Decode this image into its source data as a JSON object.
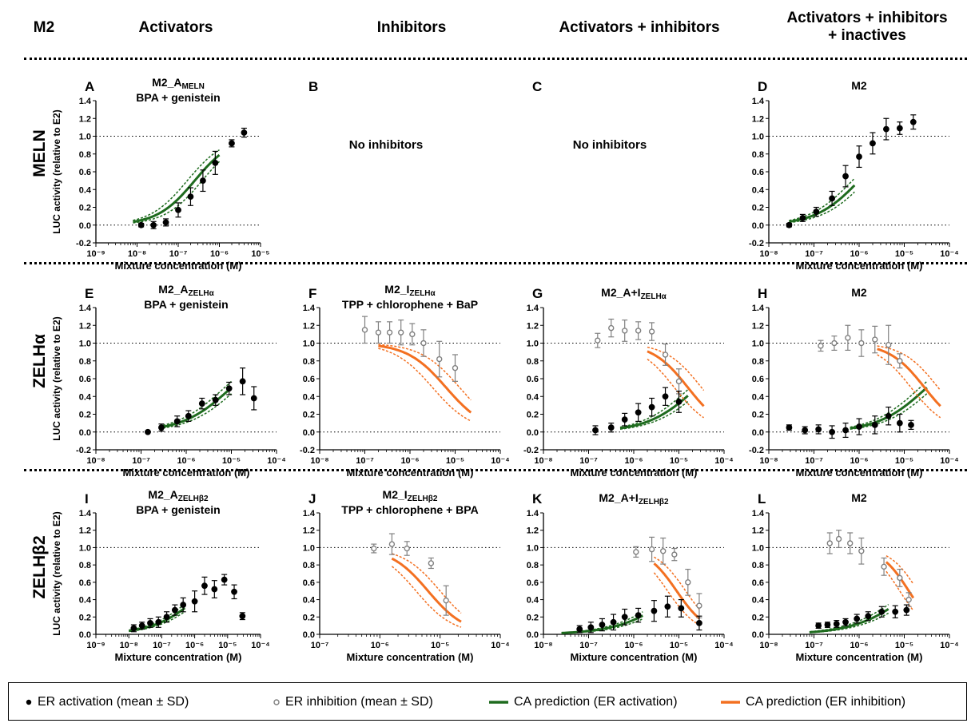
{
  "header": {
    "corner": "M2",
    "columns": [
      "Activators",
      "Inhibitors",
      "Activators + inhibitors",
      "Activators + inhibitors + inactives"
    ]
  },
  "rows": [
    {
      "label": "MELN",
      "greek": ""
    },
    {
      "label": "ZELH",
      "greek": "α"
    },
    {
      "label": "ZELH",
      "greek": "β2"
    }
  ],
  "legend": [
    {
      "symbol": "filled-circle",
      "label": "ER activation (mean ± SD)"
    },
    {
      "symbol": "open-circle",
      "label": "ER inhibition (mean ± SD)"
    },
    {
      "symbol": "green-line",
      "label": "CA prediction (ER activation)"
    },
    {
      "symbol": "orange-line",
      "label": "CA prediction (ER inhibition)"
    }
  ],
  "colors": {
    "activation_line": "#1e6b1e",
    "inhibition_line": "#f37021",
    "open_marker": "#808080",
    "filled_marker": "#000000"
  },
  "chart_data": [
    {
      "letter": "A",
      "type": "scatter",
      "title": [
        "M2_A",
        "MELN"
      ],
      "subtitle": "BPA + genistein",
      "xlabel": "Mixture concentration (M)",
      "ylabel": "LUC activity (relative to E2)",
      "xlog": true,
      "xlim": [
        -9,
        -5
      ],
      "ylim": [
        -0.2,
        1.4
      ],
      "series": [
        {
          "kind": "activation",
          "points": [
            [
              -7.9,
              0.0,
              0.02
            ],
            [
              -7.6,
              0.0,
              0.04
            ],
            [
              -7.3,
              0.03,
              0.04
            ],
            [
              -7.0,
              0.17,
              0.08
            ],
            [
              -6.7,
              0.32,
              0.1
            ],
            [
              -6.4,
              0.5,
              0.12
            ],
            [
              -6.1,
              0.7,
              0.13
            ],
            [
              -5.7,
              0.92,
              0.04
            ],
            [
              -5.4,
              1.04,
              0.05
            ]
          ]
        }
      ],
      "curves": [
        {
          "kind": "activation",
          "ec50": -6.6,
          "hill": 0.95,
          "top": 1.0,
          "dx": 0.18,
          "x0": -8.1,
          "x1": -6.0
        }
      ]
    },
    {
      "letter": "B",
      "type": "scatter",
      "title": [],
      "subtitle": "",
      "note": "No inhibitors",
      "noplot": true
    },
    {
      "letter": "C",
      "type": "scatter",
      "title": [],
      "subtitle": "",
      "note": "No inhibitors",
      "noplot": true
    },
    {
      "letter": "D",
      "type": "scatter",
      "title": [
        "M2",
        ""
      ],
      "subtitle": "",
      "xlabel": "Mixture concentration (M)",
      "ylabel": "",
      "xlog": true,
      "xlim": [
        -8,
        -4
      ],
      "ylim": [
        -0.2,
        1.4
      ],
      "series": [
        {
          "kind": "activation",
          "points": [
            [
              -7.55,
              0.0,
              0.02
            ],
            [
              -7.25,
              0.08,
              0.04
            ],
            [
              -6.95,
              0.15,
              0.05
            ],
            [
              -6.6,
              0.3,
              0.08
            ],
            [
              -6.3,
              0.55,
              0.12
            ],
            [
              -6.0,
              0.77,
              0.12
            ],
            [
              -5.7,
              0.92,
              0.12
            ],
            [
              -5.4,
              1.08,
              0.12
            ],
            [
              -5.1,
              1.09,
              0.07
            ],
            [
              -4.8,
              1.16,
              0.08
            ]
          ]
        }
      ],
      "curves": [
        {
          "kind": "activation",
          "ec50": -6.0,
          "hill": 0.9,
          "top": 1.0,
          "dx": 0.15,
          "x0": -7.55,
          "x1": -6.1
        }
      ]
    },
    {
      "letter": "E",
      "type": "scatter",
      "title": [
        "M2_A",
        "ZELHα"
      ],
      "subtitle": "BPA + genistein",
      "xlabel": "Mixture concentration (M)",
      "ylabel": "LUC activity (relative to E2)",
      "xlog": true,
      "xlim": [
        -8,
        -4
      ],
      "ylim": [
        -0.2,
        1.4
      ],
      "series": [
        {
          "kind": "activation",
          "points": [
            [
              -6.85,
              0.0,
              0.01
            ],
            [
              -6.55,
              0.05,
              0.04
            ],
            [
              -6.2,
              0.12,
              0.06
            ],
            [
              -5.95,
              0.18,
              0.06
            ],
            [
              -5.65,
              0.32,
              0.06
            ],
            [
              -5.35,
              0.36,
              0.06
            ],
            [
              -5.05,
              0.49,
              0.07
            ],
            [
              -4.75,
              0.57,
              0.15
            ],
            [
              -4.5,
              0.38,
              0.13
            ]
          ]
        }
      ],
      "curves": [
        {
          "kind": "activation",
          "ec50": -5.0,
          "hill": 0.8,
          "top": 1.0,
          "dx": 0.15,
          "x0": -6.6,
          "x1": -5.0
        }
      ]
    },
    {
      "letter": "F",
      "type": "scatter",
      "title": [
        "M2_I",
        "ZELHα"
      ],
      "subtitle": "TPP + chlorophene + BaP",
      "xlabel": "Mixture concentration (M)",
      "ylabel": "",
      "xlog": true,
      "xlim": [
        -8,
        -4
      ],
      "ylim": [
        -0.2,
        1.4
      ],
      "series": [
        {
          "kind": "inhibition",
          "points": [
            [
              -7.0,
              1.15,
              0.15
            ],
            [
              -6.7,
              1.12,
              0.12
            ],
            [
              -6.45,
              1.12,
              0.12
            ],
            [
              -6.2,
              1.12,
              0.14
            ],
            [
              -5.95,
              1.1,
              0.12
            ],
            [
              -5.7,
              1.0,
              0.15
            ],
            [
              -5.35,
              0.82,
              0.2
            ],
            [
              -5.0,
              0.72,
              0.15
            ]
          ]
        }
      ],
      "curves": [
        {
          "kind": "inhibition",
          "ic50": -5.2,
          "hill": 1.0,
          "dx": 0.3,
          "x0": -6.7,
          "x1": -4.65
        }
      ]
    },
    {
      "letter": "G",
      "type": "scatter",
      "title": [
        "M2_A+I",
        "ZELHα"
      ],
      "subtitle": "",
      "xlabel": "Mixture concentration (M)",
      "ylabel": "",
      "xlog": true,
      "xlim": [
        -8,
        -4
      ],
      "ylim": [
        -0.2,
        1.4
      ],
      "series": [
        {
          "kind": "inhibition",
          "points": [
            [
              -6.8,
              1.03,
              0.08
            ],
            [
              -6.5,
              1.17,
              0.1
            ],
            [
              -6.2,
              1.14,
              0.12
            ],
            [
              -5.9,
              1.14,
              0.1
            ],
            [
              -5.6,
              1.13,
              0.1
            ],
            [
              -5.3,
              0.87,
              0.12
            ],
            [
              -5.0,
              0.57,
              0.14
            ]
          ]
        },
        {
          "kind": "activation",
          "points": [
            [
              -6.85,
              0.02,
              0.05
            ],
            [
              -6.5,
              0.05,
              0.05
            ],
            [
              -6.2,
              0.14,
              0.07
            ],
            [
              -5.9,
              0.22,
              0.1
            ],
            [
              -5.6,
              0.28,
              0.1
            ],
            [
              -5.3,
              0.4,
              0.1
            ],
            [
              -5.0,
              0.34,
              0.12
            ]
          ]
        }
      ],
      "curves": [
        {
          "kind": "activation",
          "ec50": -4.6,
          "hill": 0.8,
          "top": 1.0,
          "dx": 0.15,
          "x0": -6.3,
          "x1": -4.8
        },
        {
          "kind": "inhibition",
          "ic50": -4.8,
          "hill": 1.1,
          "dx": 0.3,
          "x0": -5.7,
          "x1": -4.45
        }
      ]
    },
    {
      "letter": "H",
      "type": "scatter",
      "title": [
        "M2",
        ""
      ],
      "subtitle": "",
      "xlabel": "Mixture concentration (M)",
      "ylabel": "",
      "xlog": true,
      "xlim": [
        -8,
        -4
      ],
      "ylim": [
        -0.2,
        1.4
      ],
      "series": [
        {
          "kind": "inhibition",
          "points": [
            [
              -6.85,
              0.97,
              0.06
            ],
            [
              -6.55,
              1.0,
              0.08
            ],
            [
              -6.25,
              1.06,
              0.14
            ],
            [
              -5.95,
              1.0,
              0.15
            ],
            [
              -5.65,
              1.04,
              0.15
            ],
            [
              -5.35,
              0.98,
              0.22
            ],
            [
              -5.1,
              0.8,
              0.08
            ]
          ]
        },
        {
          "kind": "activation",
          "points": [
            [
              -7.55,
              0.05,
              0.03
            ],
            [
              -7.2,
              0.02,
              0.04
            ],
            [
              -6.9,
              0.03,
              0.05
            ],
            [
              -6.6,
              0.0,
              0.07
            ],
            [
              -6.3,
              0.02,
              0.08
            ],
            [
              -6.0,
              0.06,
              0.09
            ],
            [
              -5.65,
              0.08,
              0.1
            ],
            [
              -5.35,
              0.18,
              0.1
            ],
            [
              -5.1,
              0.1,
              0.1
            ],
            [
              -4.85,
              0.08,
              0.05
            ]
          ]
        }
      ],
      "curves": [
        {
          "kind": "activation",
          "ec50": -4.5,
          "hill": 0.8,
          "top": 1.0,
          "dx": 0.15,
          "x0": -6.2,
          "x1": -4.5
        },
        {
          "kind": "inhibition",
          "ic50": -4.55,
          "hill": 1.1,
          "dx": 0.3,
          "x0": -5.6,
          "x1": -4.2
        }
      ]
    },
    {
      "letter": "I",
      "type": "scatter",
      "title": [
        "M2_A",
        "ZELHβ2"
      ],
      "subtitle": "BPA + genistein",
      "xlabel": "Mixture concentration (M)",
      "ylabel": "LUC activity (relative to E2)",
      "xlog": true,
      "xlim": [
        -9,
        -4
      ],
      "ylim": [
        0.0,
        1.4
      ],
      "series": [
        {
          "kind": "activation",
          "points": [
            [
              -7.85,
              0.07,
              0.04
            ],
            [
              -7.6,
              0.1,
              0.04
            ],
            [
              -7.35,
              0.13,
              0.05
            ],
            [
              -7.1,
              0.14,
              0.06
            ],
            [
              -6.85,
              0.2,
              0.06
            ],
            [
              -6.6,
              0.28,
              0.06
            ],
            [
              -6.35,
              0.34,
              0.08
            ],
            [
              -6.0,
              0.38,
              0.12
            ],
            [
              -5.7,
              0.56,
              0.1
            ],
            [
              -5.4,
              0.52,
              0.1
            ],
            [
              -5.1,
              0.63,
              0.06
            ],
            [
              -4.8,
              0.49,
              0.08
            ],
            [
              -4.55,
              0.21,
              0.04
            ]
          ]
        }
      ],
      "curves": [
        {
          "kind": "activation",
          "ec50": -5.7,
          "hill": 0.6,
          "top": 1.0,
          "dx": 0.15,
          "x0": -8.0,
          "x1": -6.3
        }
      ]
    },
    {
      "letter": "J",
      "type": "scatter",
      "title": [
        "M2_I",
        "ZELHβ2"
      ],
      "subtitle": "TPP + chlorophene + BPA",
      "xlabel": "Mixture concentration (M)",
      "ylabel": "",
      "xlog": true,
      "xlim": [
        -7,
        -4
      ],
      "ylim": [
        0.0,
        1.4
      ],
      "series": [
        {
          "kind": "inhibition",
          "points": [
            [
              -6.1,
              0.99,
              0.05
            ],
            [
              -5.8,
              1.04,
              0.12
            ],
            [
              -5.55,
              0.99,
              0.08
            ],
            [
              -5.15,
              0.82,
              0.06
            ],
            [
              -4.9,
              0.39,
              0.17
            ]
          ]
        }
      ],
      "curves": [
        {
          "kind": "inhibition",
          "ic50": -5.2,
          "hill": 1.4,
          "dx": 0.2,
          "x0": -5.8,
          "x1": -4.65
        }
      ]
    },
    {
      "letter": "K",
      "type": "scatter",
      "title": [
        "M2_A+I",
        "ZELHβ2"
      ],
      "subtitle": "",
      "xlabel": "Mixture concentration (M)",
      "ylabel": "",
      "xlog": true,
      "xlim": [
        -8,
        -4
      ],
      "ylim": [
        0.0,
        1.4
      ],
      "series": [
        {
          "kind": "inhibition",
          "points": [
            [
              -5.95,
              0.95,
              0.06
            ],
            [
              -5.6,
              0.98,
              0.14
            ],
            [
              -5.35,
              0.96,
              0.15
            ],
            [
              -5.1,
              0.92,
              0.07
            ],
            [
              -4.8,
              0.6,
              0.15
            ],
            [
              -4.55,
              0.33,
              0.14
            ]
          ]
        },
        {
          "kind": "activation",
          "points": [
            [
              -7.2,
              0.06,
              0.04
            ],
            [
              -6.95,
              0.08,
              0.06
            ],
            [
              -6.7,
              0.11,
              0.07
            ],
            [
              -6.45,
              0.14,
              0.09
            ],
            [
              -6.2,
              0.2,
              0.09
            ],
            [
              -5.9,
              0.22,
              0.08
            ],
            [
              -5.55,
              0.27,
              0.12
            ],
            [
              -5.25,
              0.32,
              0.12
            ],
            [
              -4.95,
              0.3,
              0.1
            ],
            [
              -4.55,
              0.13,
              0.08
            ]
          ]
        }
      ],
      "curves": [
        {
          "kind": "activation",
          "ec50": -5.0,
          "hill": 0.7,
          "top": 1.0,
          "dx": 0.15,
          "x0": -7.6,
          "x1": -5.8
        },
        {
          "kind": "inhibition",
          "ic50": -5.05,
          "hill": 1.3,
          "dx": 0.2,
          "x0": -5.55,
          "x1": -4.55
        }
      ]
    },
    {
      "letter": "L",
      "type": "scatter",
      "title": [
        "M2",
        ""
      ],
      "subtitle": "",
      "xlabel": "Mixture concentration (M)",
      "ylabel": "",
      "xlog": true,
      "xlim": [
        -8,
        -4
      ],
      "ylim": [
        0.0,
        1.4
      ],
      "series": [
        {
          "kind": "inhibition",
          "points": [
            [
              -6.65,
              1.05,
              0.12
            ],
            [
              -6.45,
              1.1,
              0.1
            ],
            [
              -6.2,
              1.05,
              0.12
            ],
            [
              -5.95,
              0.96,
              0.15
            ],
            [
              -5.45,
              0.78,
              0.1
            ],
            [
              -5.1,
              0.65,
              0.1
            ],
            [
              -4.9,
              0.4,
              0.08
            ]
          ]
        },
        {
          "kind": "activation",
          "points": [
            [
              -6.9,
              0.1,
              0.03
            ],
            [
              -6.7,
              0.11,
              0.03
            ],
            [
              -6.5,
              0.12,
              0.04
            ],
            [
              -6.3,
              0.14,
              0.04
            ],
            [
              -6.05,
              0.18,
              0.05
            ],
            [
              -5.8,
              0.21,
              0.05
            ],
            [
              -5.5,
              0.26,
              0.06
            ],
            [
              -5.2,
              0.26,
              0.07
            ],
            [
              -4.95,
              0.28,
              0.06
            ]
          ]
        }
      ],
      "curves": [
        {
          "kind": "activation",
          "ec50": -4.8,
          "hill": 0.7,
          "top": 1.0,
          "dx": 0.15,
          "x0": -7.1,
          "x1": -5.35
        },
        {
          "kind": "inhibition",
          "ic50": -4.9,
          "hill": 1.4,
          "dx": 0.2,
          "x0": -5.4,
          "x1": -4.8
        }
      ]
    }
  ]
}
